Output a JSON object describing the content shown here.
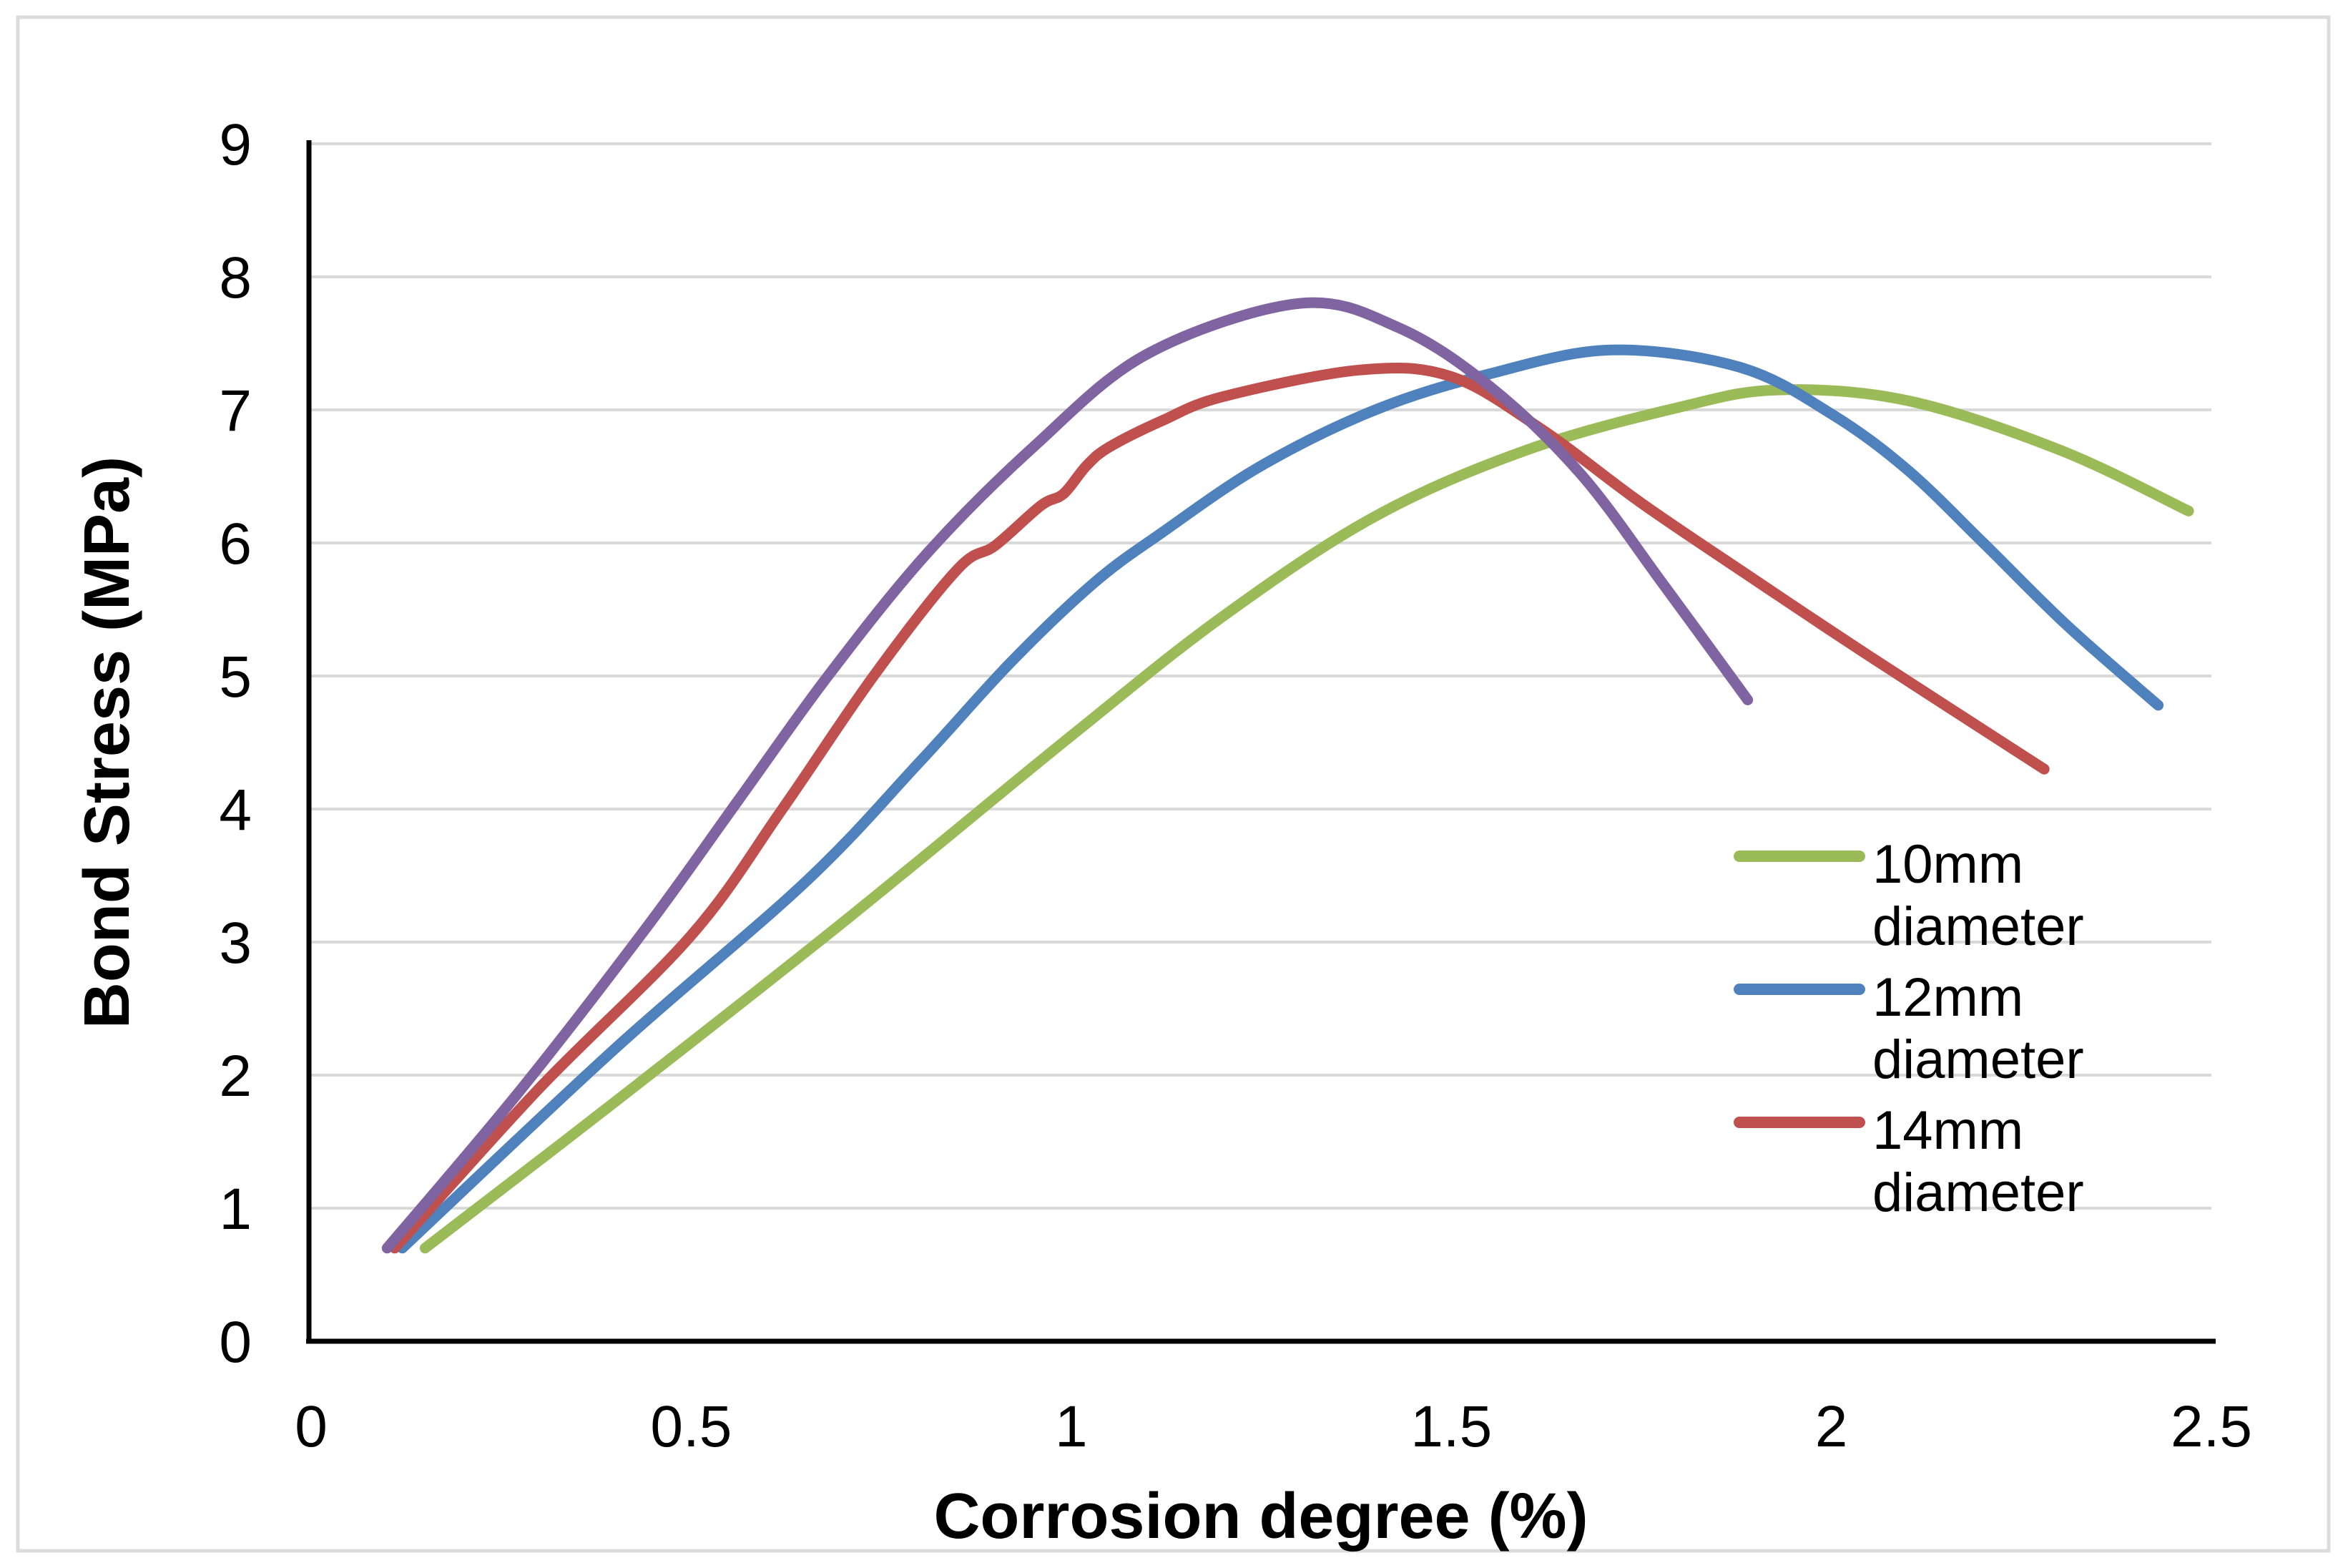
{
  "chart_data": {
    "type": "line",
    "title": "",
    "xlabel": "Corrosion degree (%)",
    "ylabel": "Bond Stress (MPa)",
    "xlim": [
      0,
      2.5
    ],
    "ylim": [
      0,
      9
    ],
    "x_tick_values": [
      0,
      0.5,
      1,
      1.5,
      2,
      2.5
    ],
    "x_tick_labels": [
      "0",
      "0.5",
      "1",
      "1.5",
      "2",
      "2.5"
    ],
    "y_tick_values": [
      0,
      1,
      2,
      3,
      4,
      5,
      6,
      7,
      8,
      9
    ],
    "y_tick_labels": [
      "0",
      "1",
      "2",
      "3",
      "4",
      "5",
      "6",
      "7",
      "8",
      "9"
    ],
    "grid": "horizontal-only",
    "legend_position": "inside-right",
    "colors": {
      "gridline": "#D9D9D9",
      "axis_line": "#000000",
      "figure_border": "#DCDCDC",
      "text": "#000000"
    },
    "series": [
      {
        "id": "10mm",
        "legend_label": "10mm diameter",
        "color": "#9BBB59",
        "points": [
          [
            0.15,
            0.7
          ],
          [
            0.4,
            1.8
          ],
          [
            0.7,
            3.15
          ],
          [
            1.0,
            4.55
          ],
          [
            1.2,
            5.45
          ],
          [
            1.4,
            6.2
          ],
          [
            1.6,
            6.7
          ],
          [
            1.8,
            7.02
          ],
          [
            1.93,
            7.15
          ],
          [
            2.1,
            7.07
          ],
          [
            2.3,
            6.7
          ],
          [
            2.47,
            6.24
          ]
        ]
      },
      {
        "id": "12mm",
        "legend_label": "12mm diameter",
        "color": "#4F81BD",
        "points": [
          [
            0.12,
            0.7
          ],
          [
            0.4,
            2.2
          ],
          [
            0.65,
            3.45
          ],
          [
            0.8,
            4.35
          ],
          [
            0.92,
            5.1
          ],
          [
            1.03,
            5.7
          ],
          [
            1.12,
            6.08
          ],
          [
            1.25,
            6.58
          ],
          [
            1.4,
            7.0
          ],
          [
            1.55,
            7.27
          ],
          [
            1.71,
            7.45
          ],
          [
            1.88,
            7.32
          ],
          [
            2.0,
            6.97
          ],
          [
            2.1,
            6.55
          ],
          [
            2.2,
            6.0
          ],
          [
            2.31,
            5.38
          ],
          [
            2.43,
            4.78
          ]
        ]
      },
      {
        "id": "14mm",
        "legend_label": "14mm diameter",
        "color": "#C0504D",
        "points": [
          [
            0.11,
            0.7
          ],
          [
            0.3,
            1.9
          ],
          [
            0.5,
            3.05
          ],
          [
            0.62,
            4.0
          ],
          [
            0.74,
            5.0
          ],
          [
            0.85,
            5.8
          ],
          [
            0.9,
            5.98
          ],
          [
            0.96,
            6.28
          ],
          [
            0.99,
            6.37
          ],
          [
            1.02,
            6.58
          ],
          [
            1.05,
            6.72
          ],
          [
            1.12,
            6.92
          ],
          [
            1.2,
            7.1
          ],
          [
            1.38,
            7.3
          ],
          [
            1.5,
            7.25
          ],
          [
            1.62,
            6.85
          ],
          [
            1.75,
            6.3
          ],
          [
            1.9,
            5.72
          ],
          [
            2.05,
            5.15
          ],
          [
            2.28,
            4.3
          ]
        ]
      },
      {
        "id": "unlabeled-purple",
        "legend_label": null,
        "color": "#8064A2",
        "points": [
          [
            0.1,
            0.7
          ],
          [
            0.27,
            1.85
          ],
          [
            0.44,
            3.1
          ],
          [
            0.56,
            4.05
          ],
          [
            0.68,
            5.0
          ],
          [
            0.81,
            5.92
          ],
          [
            0.95,
            6.72
          ],
          [
            1.1,
            7.42
          ],
          [
            1.3,
            7.8
          ],
          [
            1.43,
            7.62
          ],
          [
            1.55,
            7.18
          ],
          [
            1.67,
            6.52
          ],
          [
            1.78,
            5.68
          ],
          [
            1.89,
            4.82
          ]
        ]
      }
    ]
  }
}
